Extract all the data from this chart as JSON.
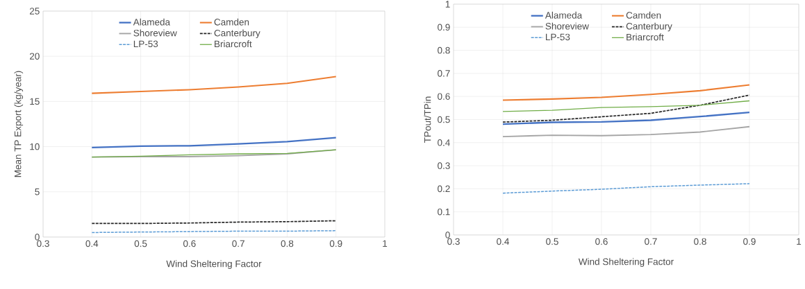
{
  "chart_data": [
    {
      "type": "line",
      "xlabel": "Wind Sheltering Factor",
      "ylabel": "Mean TP Export (kg/year)",
      "x": [
        0.4,
        0.5,
        0.6,
        0.7,
        0.8,
        0.9
      ],
      "xlim": [
        0.3,
        1
      ],
      "xticks": [
        0.3,
        0.4,
        0.5,
        0.6,
        0.7,
        0.8,
        0.9,
        1
      ],
      "ylim": [
        0,
        25
      ],
      "yticks": [
        0,
        5,
        10,
        15,
        20,
        25
      ],
      "grid": true,
      "legend": "top",
      "marker": "none",
      "series": [
        {
          "name": "Alameda",
          "color": "#4472c4",
          "line_style": "solid",
          "values": [
            9.9,
            10.05,
            10.1,
            10.3,
            10.55,
            11.0
          ]
        },
        {
          "name": "Camden",
          "color": "#ed7d31",
          "line_style": "solid",
          "values": [
            15.9,
            16.1,
            16.3,
            16.6,
            17.0,
            17.75
          ]
        },
        {
          "name": "Shoreview",
          "color": "#a5a5a5",
          "line_style": "solid",
          "values": [
            8.85,
            8.9,
            8.9,
            9.0,
            9.2,
            9.65
          ]
        },
        {
          "name": "Canterbury",
          "color": "#262626",
          "line_style": "dashed",
          "values": [
            1.5,
            1.5,
            1.55,
            1.65,
            1.7,
            1.8
          ]
        },
        {
          "name": "LP-53",
          "color": "#5b9bd5",
          "line_style": "dashed",
          "values": [
            0.5,
            0.55,
            0.6,
            0.65,
            0.65,
            0.7
          ]
        },
        {
          "name": "Briarcroft",
          "color": "#70ad47",
          "line_style": "solid",
          "values": [
            8.85,
            8.95,
            9.1,
            9.2,
            9.25,
            9.65
          ]
        }
      ]
    },
    {
      "type": "line",
      "xlabel": "Wind Sheltering Factor",
      "ylabel": "TPout/TPin",
      "x": [
        0.4,
        0.5,
        0.6,
        0.7,
        0.8,
        0.9
      ],
      "xlim": [
        0.3,
        1
      ],
      "xticks": [
        0.3,
        0.4,
        0.5,
        0.6,
        0.7,
        0.8,
        0.9,
        1
      ],
      "ylim": [
        0,
        1
      ],
      "yticks": [
        0,
        0.1,
        0.2,
        0.3,
        0.4,
        0.5,
        0.6,
        0.7,
        0.8,
        0.9,
        1
      ],
      "grid": true,
      "legend": "top",
      "marker": "none",
      "series": [
        {
          "name": "Alameda",
          "color": "#4472c4",
          "line_style": "solid",
          "values": [
            0.48,
            0.488,
            0.49,
            0.497,
            0.513,
            0.531
          ]
        },
        {
          "name": "Camden",
          "color": "#ed7d31",
          "line_style": "solid",
          "values": [
            0.584,
            0.589,
            0.596,
            0.609,
            0.625,
            0.65
          ]
        },
        {
          "name": "Shoreview",
          "color": "#a5a5a5",
          "line_style": "solid",
          "values": [
            0.426,
            0.432,
            0.43,
            0.435,
            0.446,
            0.469
          ]
        },
        {
          "name": "Canterbury",
          "color": "#262626",
          "line_style": "dashed",
          "values": [
            0.489,
            0.497,
            0.512,
            0.527,
            0.562,
            0.606
          ]
        },
        {
          "name": "LP-53",
          "color": "#5b9bd5",
          "line_style": "dashed",
          "values": [
            0.181,
            0.19,
            0.198,
            0.209,
            0.216,
            0.222
          ]
        },
        {
          "name": "Briarcroft",
          "color": "#70ad47",
          "line_style": "solid",
          "values": [
            0.535,
            0.54,
            0.552,
            0.556,
            0.562,
            0.581
          ]
        }
      ]
    }
  ]
}
